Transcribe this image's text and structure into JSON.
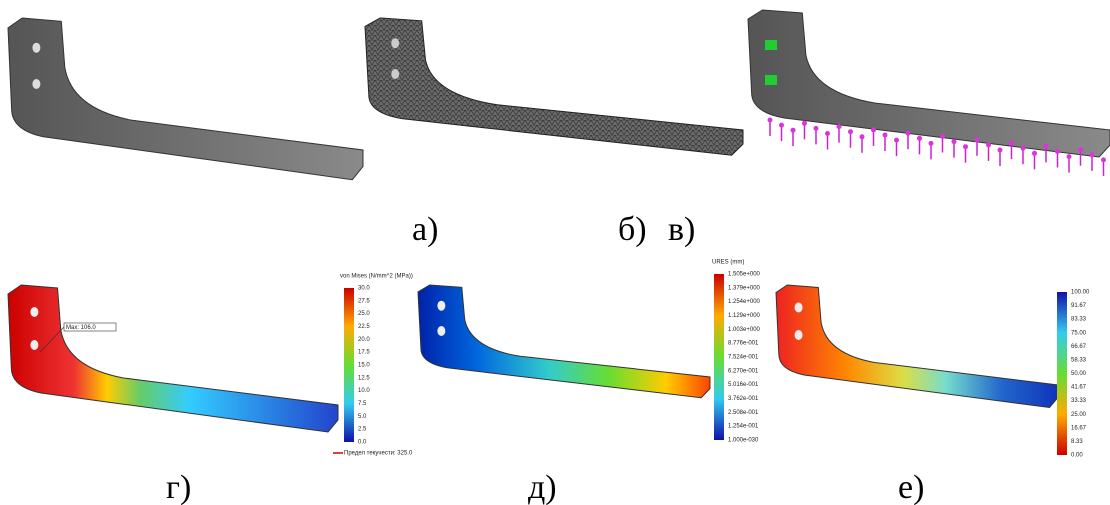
{
  "labels": {
    "a": "а)",
    "b": "б)",
    "c": "в)",
    "d": "г)",
    "e": "д)",
    "f": "е)"
  },
  "panel_g": {
    "title": "von Mises (N/mm^2 (MPa))",
    "annotation": "Max: 106.0",
    "footer": "Предел текучести: 325.0",
    "ticks": [
      "30.0",
      "27.5",
      "25.0",
      "22.5",
      "20.0",
      "17.5",
      "15.0",
      "12.5",
      "10.0",
      "7.5",
      "5.0",
      "2.5",
      "0.0"
    ]
  },
  "panel_d": {
    "title": "URES (mm)",
    "ticks": [
      "1.505e+000",
      "1.379e+000",
      "1.254e+000",
      "1.129e+000",
      "1.003e+000",
      "8.776e-001",
      "7.524e-001",
      "6.270e-001",
      "5.016e-001",
      "3.762e-001",
      "2.508e-001",
      "1.254e-001",
      "1.000e-030"
    ]
  },
  "panel_e": {
    "ticks": [
      "100.00",
      "91.67",
      "83.33",
      "75.00",
      "66.67",
      "58.33",
      "50.00",
      "41.67",
      "33.33",
      "25.00",
      "16.67",
      "8.33",
      "0.00"
    ]
  }
}
